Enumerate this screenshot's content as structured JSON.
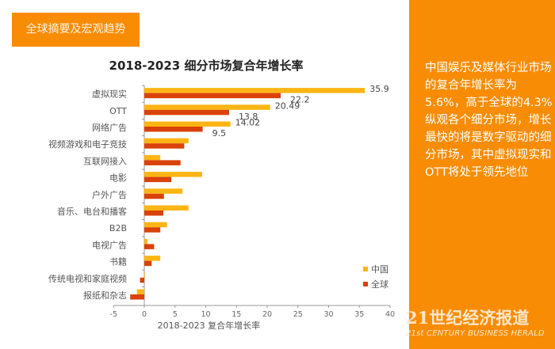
{
  "section_tag": "全球摘要及宏观趋势",
  "side_panel": {
    "paragraphs": [
      "中国娱乐及媒体行业市场的复合年增长率为5.6%，高于全球的4.3%",
      "纵观各个细分市场，增长最快的将是数字驱动的细分市场，其中虚拟现实和OTT将处于领先地位"
    ]
  },
  "brand": {
    "name_cn": "21世纪经济报道",
    "name_en": "21st CENTURY BUSINESS HERALD"
  },
  "colors": {
    "accent": "#f98c05",
    "china": "#fdb515",
    "global": "#d9420b"
  },
  "chart_data": {
    "type": "bar",
    "orientation": "horizontal",
    "title": "2018-2023 细分市场复合年增长率",
    "xlabel": "2018-2023 复合年增长率",
    "ylabel": "",
    "xlim": [
      -5,
      40
    ],
    "xticks": [
      -5,
      0,
      5,
      10,
      15,
      20,
      25,
      30,
      35,
      40
    ],
    "grid": false,
    "legend_position": "bottom-right",
    "categories": [
      "虚拟现实",
      "OTT",
      "网络广告",
      "视频游戏和电子竞技",
      "互联网接入",
      "电影",
      "户外广告",
      "音乐、电台和播客",
      "B2B",
      "电视广告",
      "书籍",
      "传统电视和家庭视频",
      "报纸和杂志"
    ],
    "series": [
      {
        "name": "中国",
        "color": "#fdb515",
        "values": [
          35.9,
          20.49,
          14.02,
          7.2,
          2.6,
          9.4,
          6.2,
          7.2,
          3.7,
          0.5,
          2.6,
          0.1,
          -1.2
        ],
        "labels": [
          "35.9",
          "20.49",
          "14.02",
          "",
          "",
          "",
          "",
          "",
          "",
          "",
          "",
          "",
          ""
        ]
      },
      {
        "name": "全球",
        "color": "#d9420b",
        "values": [
          22.2,
          13.8,
          9.5,
          6.5,
          5.9,
          4.4,
          3.2,
          3.1,
          2.6,
          1.6,
          1.2,
          -0.7,
          -2.3
        ],
        "labels": [
          "22.2",
          "13.8",
          "9.5",
          "",
          "",
          "",
          "",
          "",
          "",
          "",
          "",
          "",
          ""
        ]
      }
    ]
  }
}
